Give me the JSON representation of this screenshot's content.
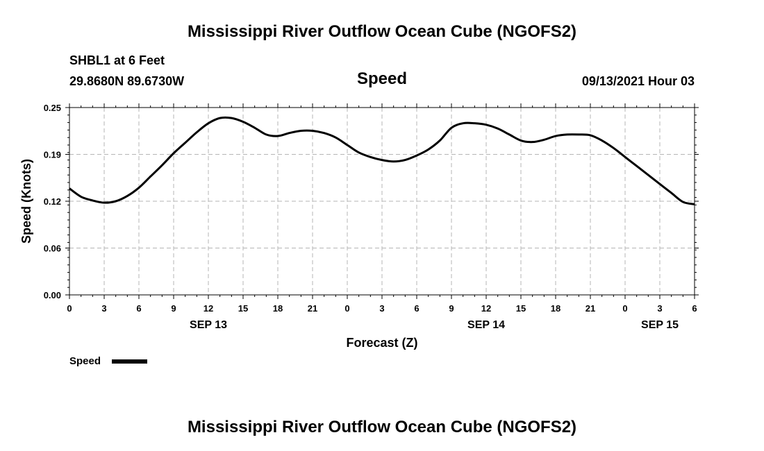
{
  "header": {
    "title": "Mississippi River Outflow Ocean Cube (NGOFS2)",
    "station": "SHBL1 at 6 Feet",
    "coords": "29.8680N  89.6730W",
    "variable": "Speed",
    "datetime": "09/13/2021 Hour 03"
  },
  "footer": {
    "title": "Mississippi River Outflow Ocean Cube (NGOFS2)"
  },
  "chart_data": {
    "type": "line",
    "xlabel": "Forecast (Z)",
    "ylabel": "Speed (Knots)",
    "ylim": [
      0.0,
      0.25
    ],
    "xlim": [
      0,
      54
    ],
    "y_ticks": [
      "0.00",
      "0.06",
      "0.12",
      "0.19",
      "0.25"
    ],
    "x_tick_labels": [
      "0",
      "3",
      "6",
      "9",
      "12",
      "15",
      "18",
      "21",
      "0",
      "3",
      "6",
      "9",
      "12",
      "15",
      "18",
      "21",
      "0",
      "3",
      "6"
    ],
    "date_labels": [
      {
        "label": "SEP 13",
        "at_hour": 12
      },
      {
        "label": "SEP 14",
        "at_hour": 36
      },
      {
        "label": "SEP 15",
        "at_hour": 51
      }
    ],
    "grid": true,
    "legend": {
      "placement": "bottom-left",
      "entries": [
        "Speed"
      ]
    },
    "series": [
      {
        "name": "Speed",
        "color": "#000000",
        "x": [
          0,
          1,
          2,
          3,
          4,
          5,
          6,
          7,
          8,
          9,
          10,
          11,
          12,
          13,
          14,
          15,
          16,
          17,
          18,
          19,
          20,
          21,
          22,
          23,
          24,
          25,
          26,
          27,
          28,
          29,
          30,
          31,
          32,
          33,
          34,
          35,
          36,
          37,
          38,
          39,
          40,
          41,
          42,
          43,
          44,
          45,
          46,
          47,
          48,
          49,
          50,
          51,
          52,
          53,
          54
        ],
        "values": [
          0.142,
          0.131,
          0.126,
          0.123,
          0.125,
          0.132,
          0.143,
          0.158,
          0.173,
          0.189,
          0.203,
          0.217,
          0.229,
          0.236,
          0.236,
          0.231,
          0.223,
          0.214,
          0.212,
          0.216,
          0.219,
          0.219,
          0.216,
          0.21,
          0.2,
          0.19,
          0.184,
          0.18,
          0.178,
          0.18,
          0.186,
          0.194,
          0.206,
          0.223,
          0.229,
          0.229,
          0.227,
          0.222,
          0.214,
          0.206,
          0.204,
          0.207,
          0.212,
          0.214,
          0.214,
          0.213,
          0.206,
          0.196,
          0.184,
          0.172,
          0.16,
          0.148,
          0.136,
          0.124,
          0.121
        ]
      }
    ]
  }
}
